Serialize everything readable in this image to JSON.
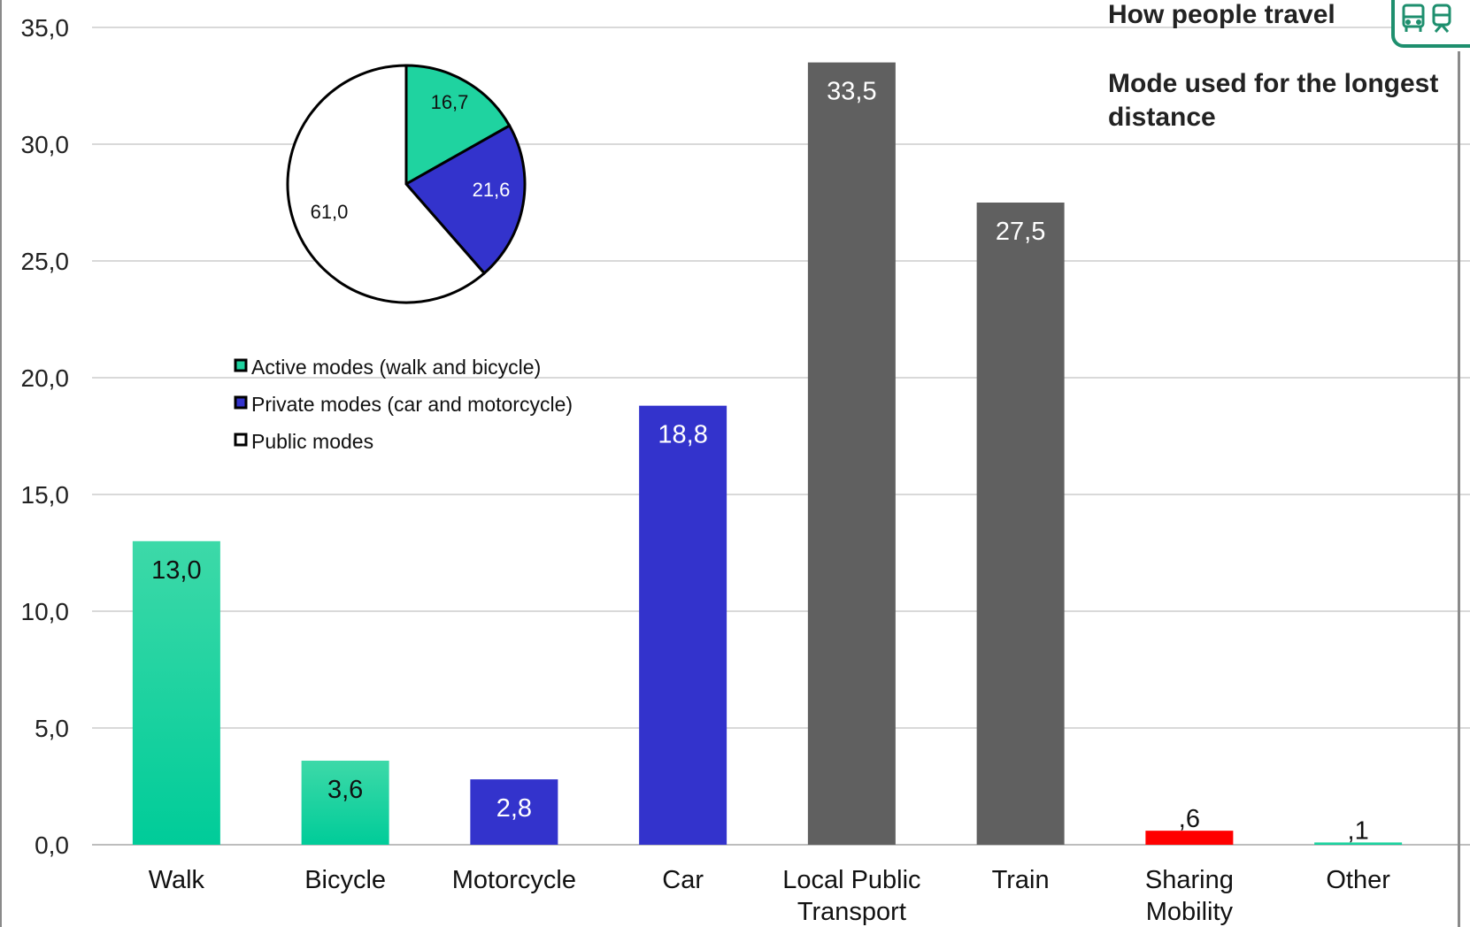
{
  "header": {
    "title": "How people travel",
    "subtitle": "Mode used for the longest distance",
    "icons": [
      "bus-icon",
      "train-icon"
    ],
    "badge_color": "#1e8f6e"
  },
  "chart_data": [
    {
      "type": "bar",
      "categories": [
        "Walk",
        "Bicycle",
        "Motorcycle",
        "Car",
        "Local Public Transport",
        "Train",
        "Sharing Mobility",
        "Other"
      ],
      "category_lines": [
        [
          "Walk"
        ],
        [
          "Bicycle"
        ],
        [
          "Motorcycle"
        ],
        [
          "Car"
        ],
        [
          "Local Public",
          "Transport"
        ],
        [
          "Train"
        ],
        [
          "Sharing",
          "Mobility"
        ],
        [
          "Other"
        ]
      ],
      "values": [
        13.0,
        3.6,
        2.8,
        18.8,
        33.5,
        27.5,
        0.6,
        0.1
      ],
      "value_labels": [
        "13,0",
        "3,6",
        "2,8",
        "18,8",
        "33,5",
        "27,5",
        ",6",
        ",1"
      ],
      "colors": [
        "#1fd3a0",
        "#1fd3a0",
        "#3333cc",
        "#3333cc",
        "#606060",
        "#606060",
        "#ff0000",
        "#1fd3a0"
      ],
      "ylim": [
        0,
        35
      ],
      "yticks": [
        "0,0",
        "5,0",
        "10,0",
        "15,0",
        "20,0",
        "25,0",
        "30,0",
        "35,0"
      ],
      "ytick_values": [
        0,
        5,
        10,
        15,
        20,
        25,
        30,
        35
      ],
      "grid": true,
      "xlabel": "",
      "ylabel": ""
    },
    {
      "type": "pie",
      "slices": [
        {
          "name": "Active modes (walk and bicycle)",
          "value": 16.7,
          "label": "16,7",
          "color": "#1fd3a0"
        },
        {
          "name": "Private modes (car and motorcycle)",
          "value": 21.6,
          "label": "21,6",
          "color": "#3333cc"
        },
        {
          "name": "Public modes",
          "value": 61.0,
          "label": "61,0",
          "color": "#ffffff"
        }
      ],
      "legend_placement": "below-pie"
    }
  ]
}
